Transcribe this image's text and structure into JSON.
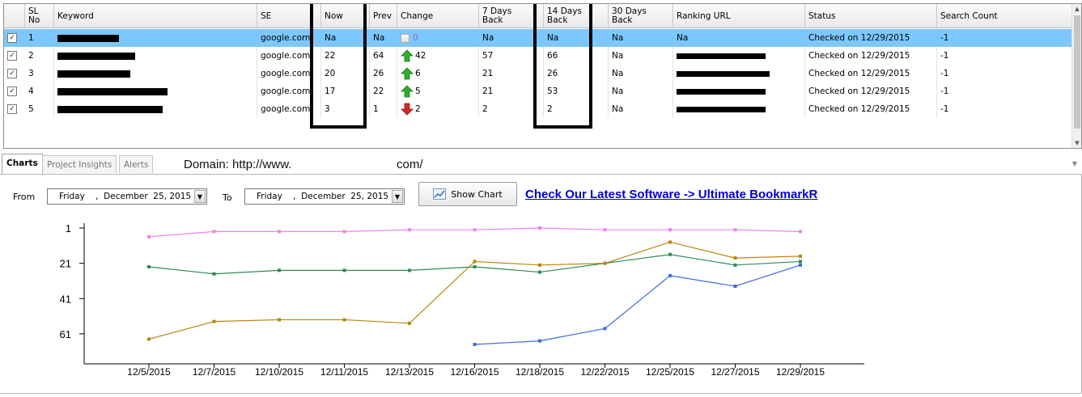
{
  "grid": {
    "columns": [
      "",
      "SL\nNo",
      "Keyword",
      "SE",
      "Now",
      "Prev",
      "Change",
      "7 Days\nBack",
      "14 Days\nBack",
      "30 Days\nBack",
      "Ranking URL",
      "Status",
      "Search Count"
    ],
    "rows": [
      {
        "checked": true,
        "no": "1",
        "se": "google.com",
        "now": "Na",
        "prev": "Na",
        "change": "0",
        "dir": "none",
        "d7": "Na",
        "d14": "Na",
        "d30": "Na",
        "url": "Na",
        "status": "Checked on 12/29/2015",
        "count": "-1"
      },
      {
        "checked": true,
        "no": "2",
        "se": "google.com",
        "now": "22",
        "prev": "64",
        "change": "42",
        "dir": "up",
        "d7": "57",
        "d14": "66",
        "d30": "Na",
        "url": "",
        "status": "Checked on 12/29/2015",
        "count": "-1"
      },
      {
        "checked": true,
        "no": "3",
        "se": "google.com",
        "now": "20",
        "prev": "26",
        "change": "6",
        "dir": "up",
        "d7": "21",
        "d14": "26",
        "d30": "Na",
        "url": "",
        "status": "Checked on 12/29/2015",
        "count": "-1"
      },
      {
        "checked": true,
        "no": "4",
        "se": "google.com",
        "now": "17",
        "prev": "22",
        "change": "5",
        "dir": "up",
        "d7": "21",
        "d14": "53",
        "d30": "Na",
        "url": "",
        "status": "Checked on 12/29/2015",
        "count": "-1"
      },
      {
        "checked": true,
        "no": "5",
        "se": "google.com",
        "now": "3",
        "prev": "1",
        "change": "2",
        "dir": "down",
        "d7": "2",
        "d14": "2",
        "d30": "Na",
        "url": "",
        "status": "Checked on 12/29/2015",
        "count": "-1"
      }
    ]
  },
  "tabs": [
    "Charts",
    "Project Insights",
    "Alerts"
  ],
  "domain": {
    "prefix": "Domain: http://www.",
    "suffix": "com/"
  },
  "controls": {
    "from_label": "From",
    "to_label": "To",
    "from_date": "Friday    ,  December  25, 2015",
    "to_date": "Friday    ,  December  25, 2015",
    "show_chart": "Show Chart",
    "promo": "Check Our Latest Software -> Ultimate BookmarkR"
  },
  "colors": {
    "selected_row": "#7dc7ff",
    "up_arrow": "#2fae2f",
    "down_arrow": "#d42a2a",
    "link": "#0000cc"
  },
  "chart_data": {
    "type": "line",
    "x": [
      "12/5/2015",
      "12/7/2015",
      "12/10/2015",
      "12/11/2015",
      "12/13/2015",
      "12/16/2015",
      "12/18/2015",
      "12/22/2015",
      "12/25/2015",
      "12/27/2015",
      "12/29/2015"
    ],
    "yticks": [
      "1",
      "21",
      "41",
      "61"
    ],
    "ylim": [
      1,
      78
    ],
    "y_reversed": true,
    "series": [
      {
        "color": "#ee82ee",
        "values": [
          6,
          3,
          3,
          3,
          2,
          2,
          1,
          2,
          2,
          2,
          3
        ]
      },
      {
        "color": "#2e8b57",
        "values": [
          23,
          27,
          25,
          25,
          25,
          23,
          26,
          21,
          16,
          22,
          20
        ]
      },
      {
        "color": "#b8860b",
        "values": [
          64,
          54,
          53,
          53,
          55,
          20,
          22,
          21,
          9,
          18,
          17
        ]
      },
      {
        "color": "#4169e1",
        "values": [
          null,
          null,
          null,
          null,
          null,
          67,
          65,
          58,
          28,
          34,
          22
        ]
      }
    ]
  }
}
